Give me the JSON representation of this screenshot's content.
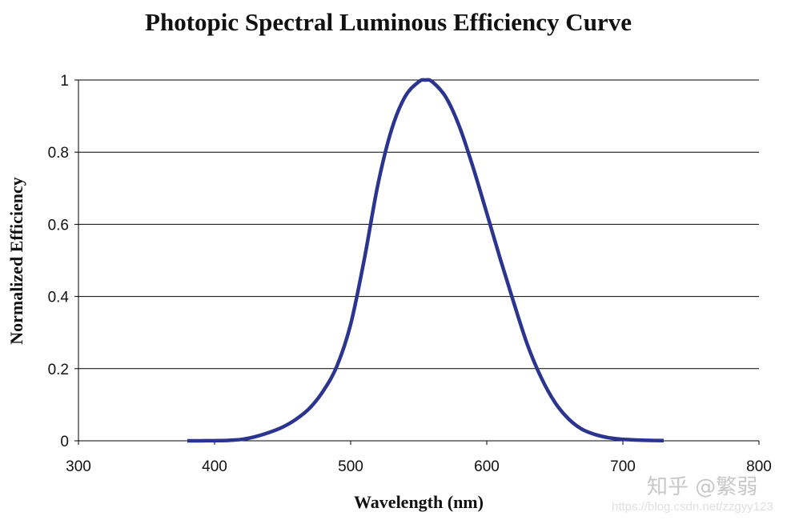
{
  "chart_data": {
    "type": "line",
    "title": "Photopic Spectral Luminous Efficiency Curve",
    "xlabel": "Wavelength (nm)",
    "ylabel": "Normalized Efficiency",
    "xlim": [
      300,
      800
    ],
    "ylim": [
      0,
      1
    ],
    "xticks": [
      300,
      400,
      500,
      600,
      700,
      800
    ],
    "yticks": [
      0,
      0.2,
      0.4,
      0.6,
      0.8,
      1
    ],
    "ytick_labels": [
      "0",
      "0.2",
      "0.4",
      "0.6",
      "0.8",
      "1"
    ],
    "grid": "horizontal",
    "legend": "none",
    "line_color": "#2b3590",
    "series": [
      {
        "x": [
          380,
          390,
          400,
          410,
          420,
          430,
          440,
          450,
          460,
          470,
          480,
          490,
          500,
          510,
          520,
          530,
          540,
          550,
          555,
          560,
          570,
          580,
          590,
          600,
          610,
          620,
          630,
          640,
          650,
          660,
          670,
          680,
          690,
          700,
          710,
          720,
          730
        ],
        "y": [
          4e-05,
          0.00012,
          0.0004,
          0.0012,
          0.004,
          0.0116,
          0.023,
          0.038,
          0.06,
          0.091,
          0.139,
          0.208,
          0.323,
          0.503,
          0.71,
          0.862,
          0.954,
          0.995,
          1.0,
          0.995,
          0.952,
          0.87,
          0.757,
          0.631,
          0.503,
          0.381,
          0.265,
          0.175,
          0.107,
          0.061,
          0.032,
          0.017,
          0.0082,
          0.0041,
          0.0021,
          0.00105,
          0.00052
        ]
      }
    ]
  },
  "watermark": {
    "line1": "知乎 @繁弱",
    "line2": "https://blog.csdn.net/zzgyy123"
  }
}
